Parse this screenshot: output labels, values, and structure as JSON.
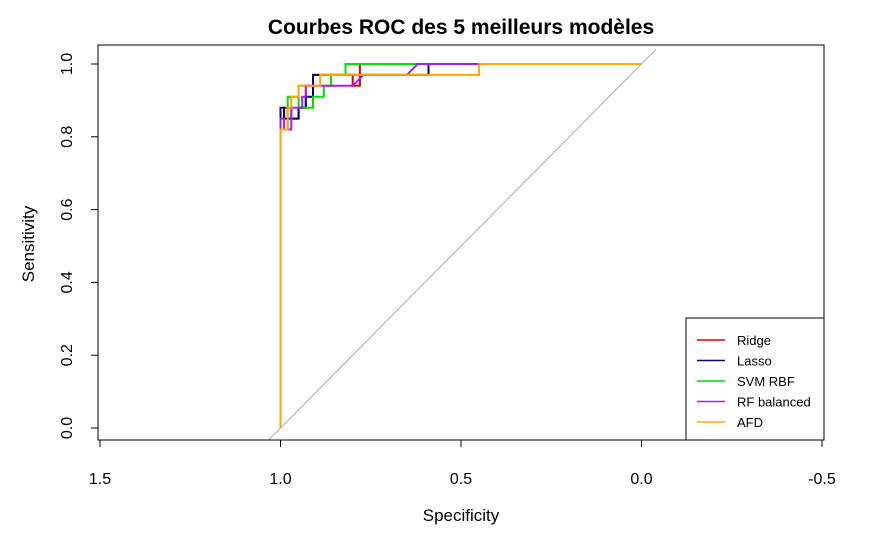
{
  "chart_data": {
    "type": "line",
    "title": "Courbes ROC des 5 meilleurs modèles",
    "xlabel": "Specificity",
    "ylabel": "Sensitivity",
    "xlim": [
      1.5,
      -0.5
    ],
    "ylim": [
      0,
      1
    ],
    "x_reversed": true,
    "x_ticks": [
      "1.5",
      "1.0",
      "0.5",
      "0.0",
      "-0.5"
    ],
    "y_ticks": [
      "0.0",
      "0.2",
      "0.4",
      "0.6",
      "0.8",
      "1.0"
    ],
    "legend_position": "bottom-right",
    "reference_line": {
      "color": "#aaaaaa",
      "x": [
        1.04,
        -0.04
      ],
      "y": [
        -0.04,
        1.04
      ]
    },
    "series": [
      {
        "name": "Ridge",
        "color": "#dd0000",
        "x": [
          1.0,
          1.0,
          0.99,
          0.99,
          0.97,
          0.97,
          0.95,
          0.95,
          0.93,
          0.93,
          0.91,
          0.91,
          0.8,
          0.8,
          0.78,
          0.78,
          0.0
        ],
        "y": [
          0.0,
          0.85,
          0.85,
          0.88,
          0.88,
          0.85,
          0.85,
          0.88,
          0.88,
          0.94,
          0.94,
          0.97,
          0.97,
          0.94,
          0.94,
          1.0,
          1.0
        ]
      },
      {
        "name": "Lasso",
        "color": "#000080",
        "x": [
          1.0,
          1.0,
          0.99,
          0.99,
          0.95,
          0.95,
          0.93,
          0.93,
          0.91,
          0.91,
          0.59,
          0.59,
          0.0
        ],
        "y": [
          0.0,
          0.88,
          0.88,
          0.85,
          0.85,
          0.88,
          0.88,
          0.91,
          0.91,
          0.97,
          0.97,
          1.0,
          1.0
        ]
      },
      {
        "name": "SVM RBF",
        "color": "#00dd00",
        "x": [
          1.0,
          1.0,
          0.98,
          0.98,
          0.95,
          0.95,
          0.91,
          0.91,
          0.88,
          0.88,
          0.86,
          0.86,
          0.82,
          0.82,
          0.0
        ],
        "y": [
          0.0,
          0.82,
          0.82,
          0.91,
          0.91,
          0.88,
          0.88,
          0.91,
          0.91,
          0.94,
          0.94,
          0.97,
          0.97,
          1.0,
          1.0
        ]
      },
      {
        "name": "RF balanced",
        "color": "#a020f0",
        "x": [
          1.0,
          1.0,
          0.99,
          0.99,
          0.97,
          0.97,
          0.94,
          0.94,
          0.93,
          0.93,
          0.8,
          0.77,
          0.77,
          0.65,
          0.62,
          0.0
        ],
        "y": [
          0.0,
          0.85,
          0.85,
          0.82,
          0.82,
          0.88,
          0.88,
          0.91,
          0.91,
          0.94,
          0.94,
          0.97,
          0.97,
          0.97,
          1.0,
          1.0
        ]
      },
      {
        "name": "AFD",
        "color": "#ffa500",
        "x": [
          1.0,
          1.0,
          0.98,
          0.98,
          0.97,
          0.97,
          0.95,
          0.95,
          0.89,
          0.89,
          0.45,
          0.45,
          0.0
        ],
        "y": [
          0.0,
          0.82,
          0.82,
          0.88,
          0.88,
          0.91,
          0.91,
          0.94,
          0.94,
          0.97,
          0.97,
          1.0,
          1.0
        ]
      }
    ]
  }
}
